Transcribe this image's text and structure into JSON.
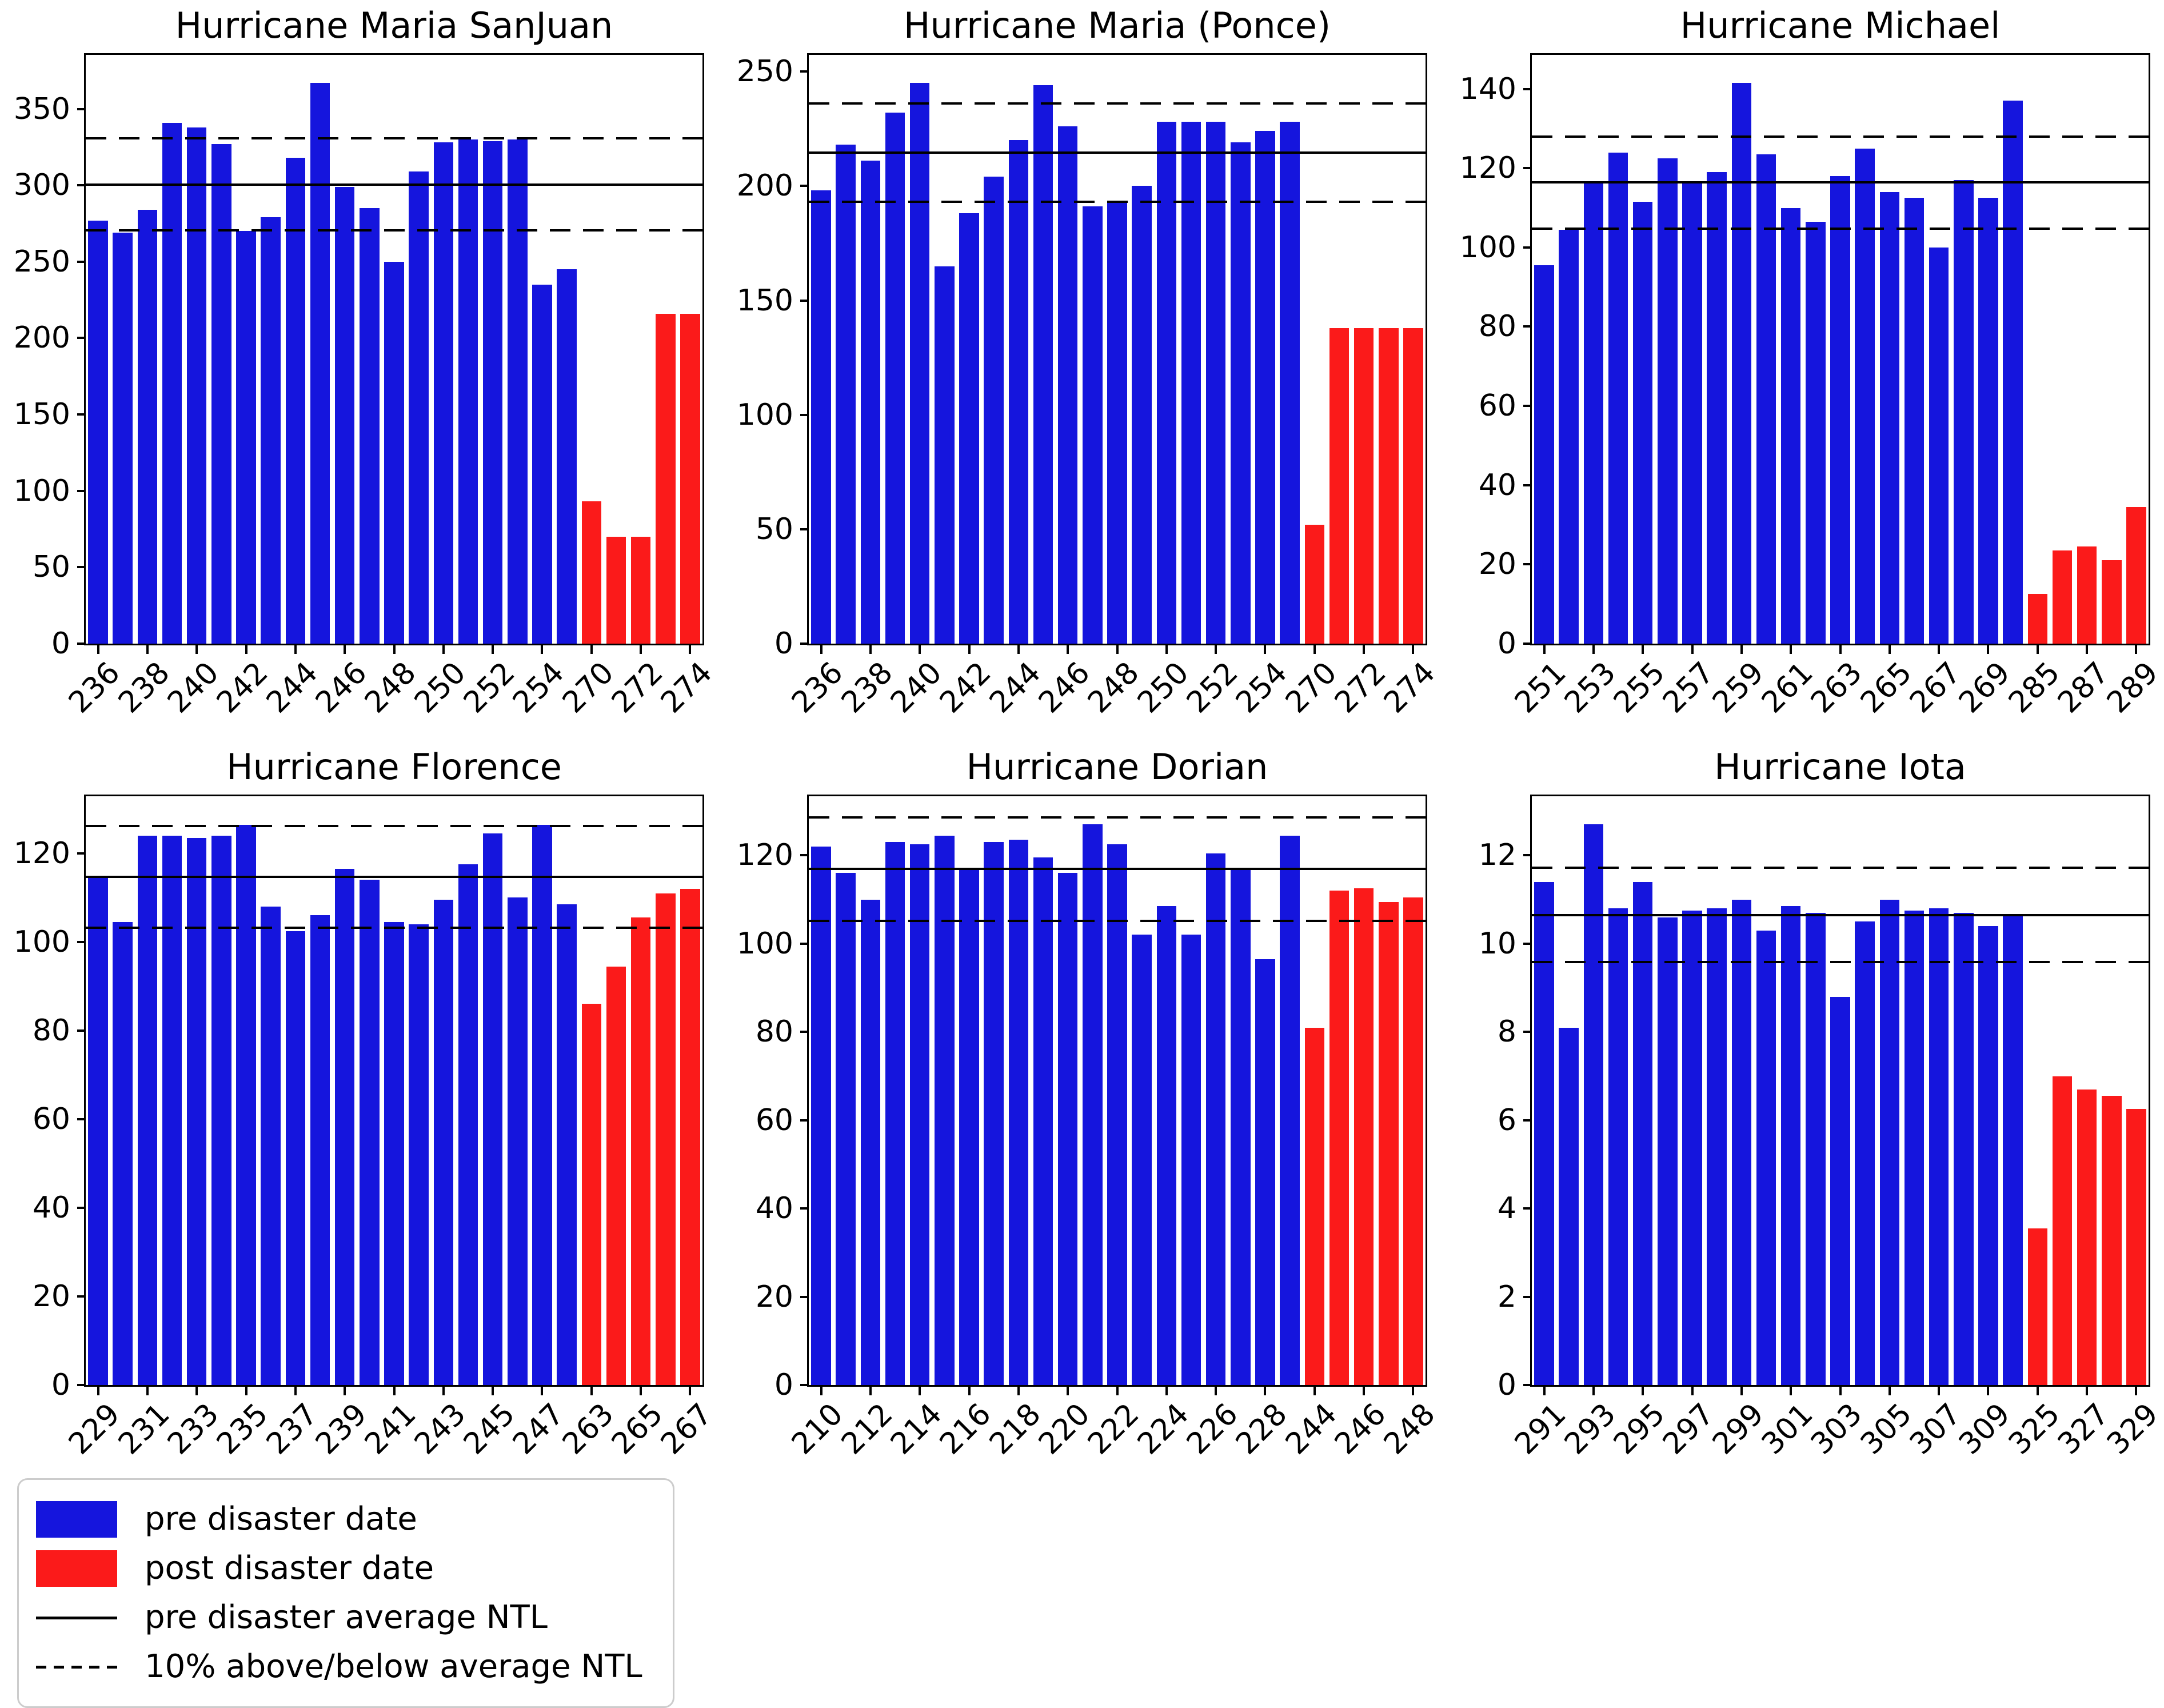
{
  "colors": {
    "pre": "#1515dd",
    "post": "#fb1a1a",
    "line": "#000000",
    "legend_border": "#cccccc"
  },
  "legend": {
    "items": [
      {
        "swatch": "pre-patch",
        "label": "pre disaster date"
      },
      {
        "swatch": "post-patch",
        "label": "post disaster date"
      },
      {
        "swatch": "solid-line",
        "label": "pre disaster average NTL"
      },
      {
        "swatch": "dashed-line",
        "label": "10% above/below average NTL"
      }
    ]
  },
  "chart_data": [
    {
      "type": "bar",
      "title": "Hurricane Maria SanJuan",
      "grid": false,
      "categories": [
        "236",
        "237",
        "238",
        "239",
        "240",
        "241",
        "242",
        "243",
        "244",
        "245",
        "246",
        "247",
        "248",
        "249",
        "250",
        "251",
        "252",
        "253",
        "254",
        "255",
        "270",
        "271",
        "272",
        "273",
        "274"
      ],
      "x_tick_labels": [
        "236",
        "238",
        "240",
        "242",
        "244",
        "246",
        "248",
        "250",
        "252",
        "254",
        "270",
        "272",
        "274"
      ],
      "series": [
        {
          "name": "pre disaster date",
          "values": [
            277,
            269,
            284,
            341,
            338,
            327,
            270,
            279,
            318,
            367,
            299,
            285,
            250,
            309,
            328,
            330,
            329,
            330,
            235,
            245
          ]
        },
        {
          "name": "post disaster date",
          "values": [
            93,
            70,
            70,
            216,
            216
          ]
        }
      ],
      "avg": 300.5,
      "avg_upper": 330.6,
      "avg_lower": 270.5,
      "y_ticks": [
        0,
        50,
        100,
        150,
        200,
        250,
        300,
        350
      ],
      "ylim": [
        0,
        385.4
      ]
    },
    {
      "type": "bar",
      "title": "Hurricane Maria (Ponce)",
      "grid": false,
      "categories": [
        "236",
        "237",
        "238",
        "239",
        "240",
        "241",
        "242",
        "243",
        "244",
        "245",
        "246",
        "247",
        "248",
        "249",
        "250",
        "251",
        "252",
        "253",
        "254",
        "255",
        "270",
        "271",
        "272",
        "273",
        "274"
      ],
      "x_tick_labels": [
        "236",
        "238",
        "240",
        "242",
        "244",
        "246",
        "248",
        "250",
        "252",
        "254",
        "270",
        "272",
        "274"
      ],
      "series": [
        {
          "name": "pre disaster date",
          "values": [
            198,
            218,
            211,
            232,
            245,
            165,
            188,
            204,
            220,
            244,
            226,
            191,
            193,
            200,
            228,
            228,
            228,
            219,
            224,
            228
          ]
        },
        {
          "name": "post disaster date",
          "values": [
            52,
            138,
            138,
            138,
            138
          ]
        }
      ],
      "avg": 214.5,
      "avg_upper": 236.0,
      "avg_lower": 193.1,
      "y_ticks": [
        0,
        50,
        100,
        150,
        200,
        250
      ],
      "ylim": [
        0,
        257.3
      ]
    },
    {
      "type": "bar",
      "title": "Hurricane Michael",
      "grid": false,
      "categories": [
        "251",
        "252",
        "253",
        "254",
        "255",
        "256",
        "257",
        "258",
        "259",
        "260",
        "261",
        "262",
        "263",
        "264",
        "265",
        "266",
        "267",
        "268",
        "269",
        "270",
        "285",
        "286",
        "287",
        "288",
        "289"
      ],
      "x_tick_labels": [
        "251",
        "253",
        "255",
        "257",
        "259",
        "261",
        "263",
        "265",
        "267",
        "269",
        "285",
        "287",
        "289"
      ],
      "series": [
        {
          "name": "pre disaster date",
          "values": [
            95.5,
            104.5,
            116.5,
            124,
            111.5,
            122.5,
            116.5,
            119,
            141.5,
            123.5,
            110,
            106.5,
            118,
            125,
            114,
            112.5,
            100,
            117,
            112.5,
            137
          ]
        },
        {
          "name": "post disaster date",
          "values": [
            12.5,
            23.5,
            24.5,
            21,
            34.5
          ]
        }
      ],
      "avg": 116.4,
      "avg_upper": 128.0,
      "avg_lower": 104.7,
      "y_ticks": [
        0,
        20,
        40,
        60,
        80,
        100,
        120,
        140
      ],
      "ylim": [
        0,
        148.6
      ]
    },
    {
      "type": "bar",
      "title": "Hurricane Florence",
      "grid": false,
      "categories": [
        "229",
        "230",
        "231",
        "232",
        "233",
        "234",
        "235",
        "236",
        "237",
        "238",
        "239",
        "240",
        "241",
        "242",
        "243",
        "244",
        "245",
        "246",
        "247",
        "248",
        "263",
        "264",
        "265",
        "266",
        "267"
      ],
      "x_tick_labels": [
        "229",
        "231",
        "233",
        "235",
        "237",
        "239",
        "241",
        "243",
        "245",
        "247",
        "263",
        "265",
        "267"
      ],
      "series": [
        {
          "name": "pre disaster date",
          "values": [
            115,
            104.5,
            124,
            124,
            123.5,
            124,
            126.5,
            108,
            102.5,
            106,
            116.5,
            114,
            104.5,
            104,
            109.5,
            117.5,
            124.5,
            110,
            126.5,
            108.5
          ]
        },
        {
          "name": "post disaster date",
          "values": [
            86,
            94.5,
            105.5,
            111,
            112
          ]
        }
      ],
      "avg": 114.7,
      "avg_upper": 126.2,
      "avg_lower": 103.2,
      "y_ticks": [
        0,
        20,
        40,
        60,
        80,
        100,
        120
      ],
      "ylim": [
        0,
        132.9
      ]
    },
    {
      "type": "bar",
      "title": "Hurricane Dorian",
      "grid": false,
      "categories": [
        "210",
        "211",
        "212",
        "213",
        "214",
        "215",
        "216",
        "217",
        "218",
        "219",
        "220",
        "221",
        "222",
        "223",
        "224",
        "225",
        "226",
        "227",
        "228",
        "229",
        "244",
        "245",
        "246",
        "247",
        "248"
      ],
      "x_tick_labels": [
        "210",
        "212",
        "214",
        "216",
        "218",
        "220",
        "222",
        "224",
        "226",
        "228",
        "244",
        "246",
        "248"
      ],
      "series": [
        {
          "name": "pre disaster date",
          "values": [
            122,
            116,
            110,
            123,
            122.5,
            124.5,
            117,
            123,
            123.5,
            119.5,
            116,
            127,
            122.5,
            102,
            108.5,
            102,
            120.5,
            117,
            96.5,
            124.5
          ]
        },
        {
          "name": "post disaster date",
          "values": [
            81,
            112,
            112.5,
            109.5,
            110.5
          ]
        }
      ],
      "avg": 116.9,
      "avg_upper": 128.6,
      "avg_lower": 105.2,
      "y_ticks": [
        0,
        20,
        40,
        60,
        80,
        100,
        120
      ],
      "ylim": [
        0,
        133.4
      ]
    },
    {
      "type": "bar",
      "title": "Hurricane Iota",
      "grid": false,
      "categories": [
        "291",
        "292",
        "293",
        "294",
        "295",
        "296",
        "297",
        "298",
        "299",
        "300",
        "301",
        "302",
        "303",
        "304",
        "305",
        "306",
        "307",
        "308",
        "309",
        "310",
        "325",
        "326",
        "327",
        "328",
        "329"
      ],
      "x_tick_labels": [
        "291",
        "293",
        "295",
        "297",
        "299",
        "301",
        "303",
        "305",
        "307",
        "309",
        "325",
        "327",
        "329"
      ],
      "series": [
        {
          "name": "pre disaster date",
          "values": [
            11.4,
            8.1,
            12.7,
            10.8,
            11.4,
            10.6,
            10.75,
            10.8,
            11.0,
            10.3,
            10.85,
            10.7,
            8.8,
            10.5,
            11.0,
            10.75,
            10.8,
            10.7,
            10.4,
            10.65
          ]
        },
        {
          "name": "post disaster date",
          "values": [
            3.55,
            7.0,
            6.7,
            6.55,
            6.25
          ]
        }
      ],
      "avg": 10.65,
      "avg_upper": 11.72,
      "avg_lower": 9.59,
      "y_ticks": [
        0,
        2,
        4,
        6,
        8,
        10,
        12
      ],
      "ylim": [
        0,
        13.34
      ]
    }
  ]
}
